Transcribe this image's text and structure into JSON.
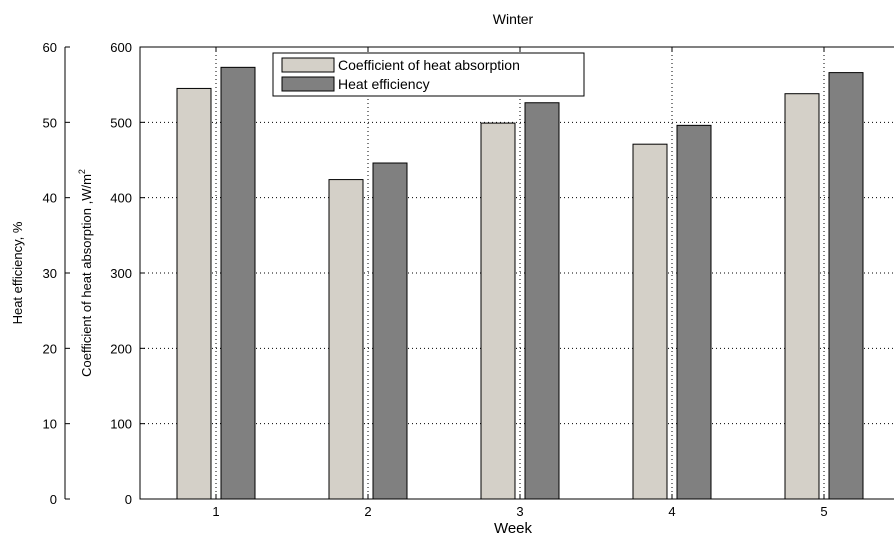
{
  "chart_data": {
    "type": "bar",
    "title": "Winter",
    "xlabel": "Week",
    "ylabel_left": "Heat efficiency, %",
    "ylabel_right_main": "Coefficient of heat absorption ,W/m",
    "ylabel_right_sup": "2",
    "categories": [
      "1",
      "2",
      "3",
      "4",
      "5"
    ],
    "ylim_left": [
      0,
      60
    ],
    "ylim_right": [
      0,
      600
    ],
    "yticks_left": [
      "0",
      "10",
      "20",
      "30",
      "40",
      "50",
      "60"
    ],
    "yticks_right": [
      "0",
      "100",
      "200",
      "300",
      "400",
      "500",
      "600"
    ],
    "grid": true,
    "legend_position": "top-left",
    "series": [
      {
        "name": "Coefficient of heat absorption",
        "axis": "right",
        "color": "#d4d0c8",
        "values": [
          545,
          424,
          499,
          471,
          538
        ]
      },
      {
        "name": "Heat efficiency",
        "axis": "right",
        "color": "#808080",
        "values": [
          573,
          446,
          526,
          496,
          566
        ]
      }
    ]
  }
}
